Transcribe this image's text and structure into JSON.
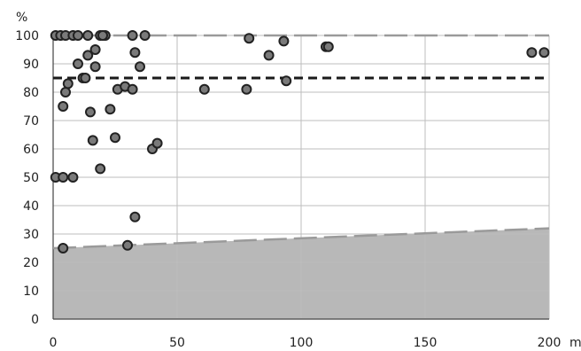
{
  "chart_data": {
    "type": "scatter",
    "title": "",
    "xlabel": "",
    "ylabel": "",
    "y_unit": "%",
    "x_unit_fragment": "m",
    "xlim": [
      0,
      200
    ],
    "ylim": [
      0,
      100
    ],
    "x_ticks": [
      0,
      50,
      100,
      150,
      200
    ],
    "y_ticks": [
      0,
      10,
      20,
      30,
      40,
      50,
      60,
      70,
      80,
      90,
      100
    ],
    "grid": true,
    "series": [
      {
        "points": [
          [
            1,
            100
          ],
          [
            3,
            100
          ],
          [
            5,
            100
          ],
          [
            8,
            100
          ],
          [
            10,
            100
          ],
          [
            14,
            100
          ],
          [
            19,
            100
          ],
          [
            21,
            100
          ],
          [
            32,
            100
          ],
          [
            37,
            100
          ],
          [
            10,
            90
          ],
          [
            12,
            85
          ],
          [
            13,
            85
          ],
          [
            14,
            93
          ],
          [
            17,
            95
          ],
          [
            17,
            89
          ],
          [
            20,
            100
          ],
          [
            4,
            75
          ],
          [
            5,
            80
          ],
          [
            6,
            83
          ],
          [
            15,
            73
          ],
          [
            23,
            74
          ],
          [
            26,
            81
          ],
          [
            29,
            82
          ],
          [
            32,
            81
          ],
          [
            33,
            94
          ],
          [
            35,
            89
          ],
          [
            16,
            63
          ],
          [
            25,
            64
          ],
          [
            40,
            60
          ],
          [
            42,
            62
          ],
          [
            1,
            50
          ],
          [
            4,
            50
          ],
          [
            8,
            50
          ],
          [
            19,
            53
          ],
          [
            33,
            36
          ],
          [
            30,
            26
          ],
          [
            4,
            25
          ],
          [
            61,
            81
          ],
          [
            78,
            81
          ],
          [
            79,
            99
          ],
          [
            87,
            93
          ],
          [
            93,
            98
          ],
          [
            94,
            84
          ],
          [
            110,
            96
          ],
          [
            111,
            96
          ],
          [
            193,
            94
          ],
          [
            198,
            94
          ]
        ]
      }
    ],
    "reference_lines": [
      {
        "style": "dashed",
        "color": "#1a1a1a",
        "y": [
          85,
          85
        ]
      },
      {
        "style": "long-dash",
        "color": "#9a9a9a",
        "y": [
          100,
          100
        ]
      },
      {
        "style": "long-dash",
        "color": "#9a9a9a",
        "y": [
          25,
          32
        ]
      }
    ],
    "shaded_band": {
      "color": "#b8b8b8",
      "y": [
        25,
        32
      ]
    }
  }
}
